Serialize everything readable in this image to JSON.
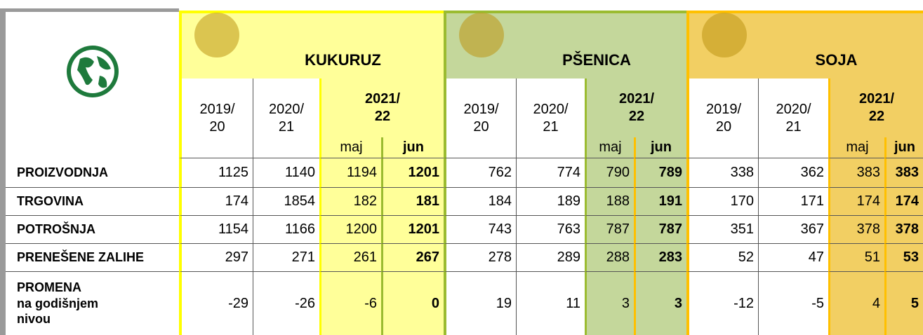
{
  "groups": [
    {
      "name": "KUKURUZ",
      "color": "#ffff99",
      "border": "#ffff00",
      "years": [
        "2019/\n20",
        "2020/\n21",
        "2021/\n22"
      ],
      "months": [
        "maj",
        "jun"
      ]
    },
    {
      "name": "PŠENICA",
      "color": "#c4d79b",
      "border": "#9bbb30",
      "years": [
        "2019/\n20",
        "2020/\n21",
        "2021/\n22"
      ],
      "months": [
        "maj",
        "jun"
      ]
    },
    {
      "name": "SOJA",
      "color": "#f2cf63",
      "border": "#ffc000",
      "years": [
        "2019/\n20",
        "2020/\n21",
        "2021/\n22"
      ],
      "months": [
        "maj",
        "jun"
      ]
    }
  ],
  "rows": [
    {
      "label": "PROIZVODNJA",
      "values": [
        1125,
        1140,
        1194,
        1201,
        762,
        774,
        790,
        789,
        338,
        362,
        383,
        383
      ]
    },
    {
      "label": "TRGOVINA",
      "values": [
        174,
        1854,
        182,
        181,
        184,
        189,
        188,
        191,
        170,
        171,
        174,
        174
      ]
    },
    {
      "label": "POTROŠNJA",
      "values": [
        1154,
        1166,
        1200,
        1201,
        743,
        763,
        787,
        787,
        351,
        367,
        378,
        378
      ]
    },
    {
      "label": "PRENEŠENE ZALIHE",
      "values": [
        297,
        271,
        261,
        267,
        278,
        289,
        288,
        283,
        52,
        47,
        51,
        53
      ]
    },
    {
      "label": "PROMENA\n na godišnjem\n nivou",
      "values": [
        -29,
        -26,
        -6,
        0,
        19,
        11,
        3,
        3,
        -12,
        -5,
        4,
        5
      ]
    }
  ]
}
